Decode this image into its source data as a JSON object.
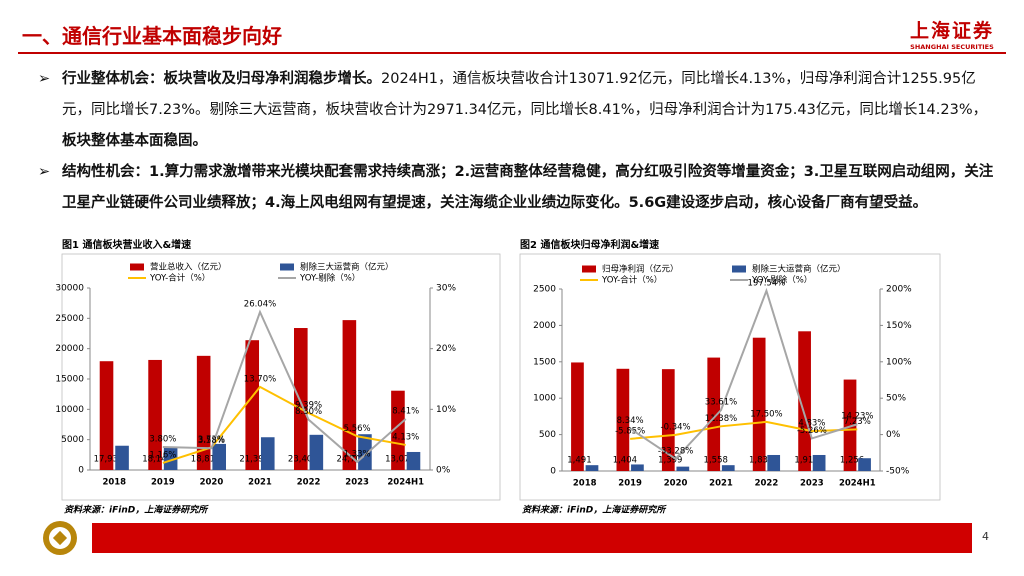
{
  "header": {
    "title": "一、通信行业基本面稳步向好",
    "logo": "上海证券",
    "logo_en": "SHANGHAI SECURITIES"
  },
  "bullets": [
    [
      "行业整体机会：板块营收及归母净利润稳步增长。",
      "2024H1，通信板块营收合计13071.92亿元，同比增长4.13%，归母净利润合计1255.95亿元，同比增长7.23%。剔除三大运营商，板块营收合计为2971.34亿元，同比增长8.41%，归母净利润合计为175.43亿元，同比增长14.23%，",
      "板块整体基本面稳固。"
    ],
    [
      "结构性机会：1.算力需求激增带来光模块配套需求持续高涨；2.运营商整体经营稳健，高分红吸引险资等增量资金；3.卫星互联网启动组网，关注卫星产业链硬件公司业绩释放；4.海上风电组网有望提速，关注海缆企业业绩边际变化。5.6G建设逐步启动，核心设备厂商有望受益。"
    ]
  ],
  "page_number": "4",
  "chart_data": [
    {
      "type": "bar",
      "title": "图1 通信板块营业收入&增速",
      "source": "资料来源：iFinD，上海证券研究所",
      "categories": [
        "2018",
        "2019",
        "2020",
        "2021",
        "2022",
        "2023",
        "2024H1"
      ],
      "ylim": [
        0,
        30000
      ],
      "yticks": [
        0,
        5000,
        10000,
        15000,
        20000,
        25000,
        30000
      ],
      "y2lim": [
        0,
        30
      ],
      "y2ticks": [
        {
          "value": 0,
          "label": "0%"
        },
        {
          "value": 10,
          "label": "10%"
        },
        {
          "value": 20,
          "label": "20%"
        },
        {
          "value": 30,
          "label": "30%"
        }
      ],
      "series": [
        {
          "name": "营业总收入（亿元）",
          "type": "bar",
          "color": "#c00000",
          "values": [
            17932,
            18141,
            18818,
            21395,
            23403,
            24706,
            13071.92
          ],
          "value_labels": [
            "17,932",
            "18,141",
            "18,818",
            "21,395",
            "23,403",
            "24,706",
            "13,072"
          ]
        },
        {
          "name": "剔除三大运营商（亿元）",
          "type": "bar",
          "color": "#2f5597",
          "values": [
            4000,
            3700,
            4300,
            5400,
            5800,
            5900,
            2971.34
          ]
        },
        {
          "name": "YOY-合计（%）",
          "type": "line",
          "axis": "y2",
          "color": "#ffc000",
          "values": [
            null,
            1.16,
            3.73,
            13.7,
            9.39,
            5.56,
            4.13
          ],
          "value_labels": [
            null,
            "1.16%",
            "3.73%",
            "13.70%",
            "9.39%",
            "5.56%",
            "4.13%"
          ]
        },
        {
          "name": "YOY-剔除（%）",
          "type": "line",
          "axis": "y2",
          "color": "#a6a6a6",
          "values": [
            null,
            3.8,
            3.58,
            26.04,
            8.3,
            1.33,
            8.41
          ],
          "value_labels": [
            null,
            "3.80%",
            "3.58%",
            "26.04%",
            "8.30%",
            "1.33%",
            "8.41%"
          ]
        }
      ]
    },
    {
      "type": "bar",
      "title": "图2 通信板块归母净利润&增速",
      "source": "资料来源：iFinD，上海证券研究所",
      "categories": [
        "2018",
        "2019",
        "2020",
        "2021",
        "2022",
        "2023",
        "2024H1"
      ],
      "ylim": [
        0,
        2500
      ],
      "yticks": [
        0,
        500,
        1000,
        1500,
        2000,
        2500
      ],
      "y2lim": [
        -50,
        200
      ],
      "y2ticks": [
        {
          "value": -50,
          "label": "-50%"
        },
        {
          "value": 0,
          "label": "0%"
        },
        {
          "value": 50,
          "label": "50%"
        },
        {
          "value": 100,
          "label": "100%"
        },
        {
          "value": 150,
          "label": "150%"
        },
        {
          "value": 200,
          "label": "200%"
        }
      ],
      "series": [
        {
          "name": "归母净利润（亿元）",
          "type": "bar",
          "color": "#c00000",
          "values": [
            1491,
            1404,
            1399,
            1558,
            1831,
            1919,
            1255.95
          ],
          "value_labels": [
            "1,491",
            "1,404",
            "1,399",
            "1,558",
            "1,831",
            "1,919",
            "1,256"
          ]
        },
        {
          "name": "剔除三大运营商（亿元）",
          "type": "bar",
          "color": "#2f5597",
          "values": [
            80,
            90,
            60,
            80,
            220,
            220,
            175.43
          ]
        },
        {
          "name": "YOY-合计（%）",
          "type": "line",
          "axis": "y2",
          "color": "#ffc000",
          "values": [
            null,
            -5.85,
            -0.34,
            11.38,
            17.5,
            4.83,
            7.23
          ],
          "value_labels": [
            null,
            "-5.85%",
            "-0.34%",
            "11.38%",
            "17.50%",
            "4.83%",
            "7.23%"
          ]
        },
        {
          "name": "YOY-剔除（%）",
          "type": "line",
          "axis": "y2",
          "color": "#a6a6a6",
          "values": [
            null,
            8.34,
            -33.28,
            33.61,
            197.54,
            -5.26,
            14.23
          ],
          "value_labels": [
            null,
            "8.34%",
            "-33.28%",
            "33.61%",
            "197.54%",
            "-5.26%",
            "14.23%"
          ]
        }
      ]
    }
  ]
}
